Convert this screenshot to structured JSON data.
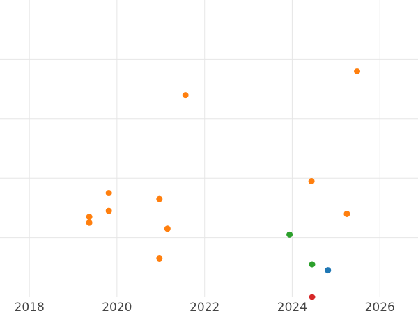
{
  "chart_data": {
    "type": "scatter",
    "title": "",
    "xlabel": "",
    "ylabel": "",
    "x_axis": {
      "scale": "time",
      "ticks": [
        "2018",
        "2020",
        "2022",
        "2024",
        "2026"
      ]
    },
    "xlim": [
      "2017-05-01",
      "2026-11-15"
    ],
    "ylim": [
      0,
      100
    ],
    "y_gridlines": [
      20,
      40,
      60,
      80
    ],
    "grid": true,
    "legend": "none",
    "series": [
      {
        "color": "#ff7f0e",
        "points": [
          {
            "x": "2019-05-15",
            "y": 27
          },
          {
            "x": "2019-05-15",
            "y": 25
          },
          {
            "x": "2019-10-25",
            "y": 35
          },
          {
            "x": "2019-10-25",
            "y": 29
          },
          {
            "x": "2020-12-20",
            "y": 33
          },
          {
            "x": "2020-12-20",
            "y": 13
          },
          {
            "x": "2021-02-25",
            "y": 23
          },
          {
            "x": "2021-07-25",
            "y": 68
          },
          {
            "x": "2024-06-10",
            "y": 39
          },
          {
            "x": "2025-04-01",
            "y": 28
          },
          {
            "x": "2025-06-25",
            "y": 76
          }
        ]
      },
      {
        "color": "#2ca02c",
        "points": [
          {
            "x": "2023-12-10",
            "y": 21
          },
          {
            "x": "2024-06-15",
            "y": 11
          }
        ]
      },
      {
        "color": "#1f77b4",
        "points": [
          {
            "x": "2024-10-25",
            "y": 9
          }
        ]
      },
      {
        "color": "#d62728",
        "points": [
          {
            "x": "2024-06-15",
            "y": 0
          }
        ]
      }
    ]
  }
}
